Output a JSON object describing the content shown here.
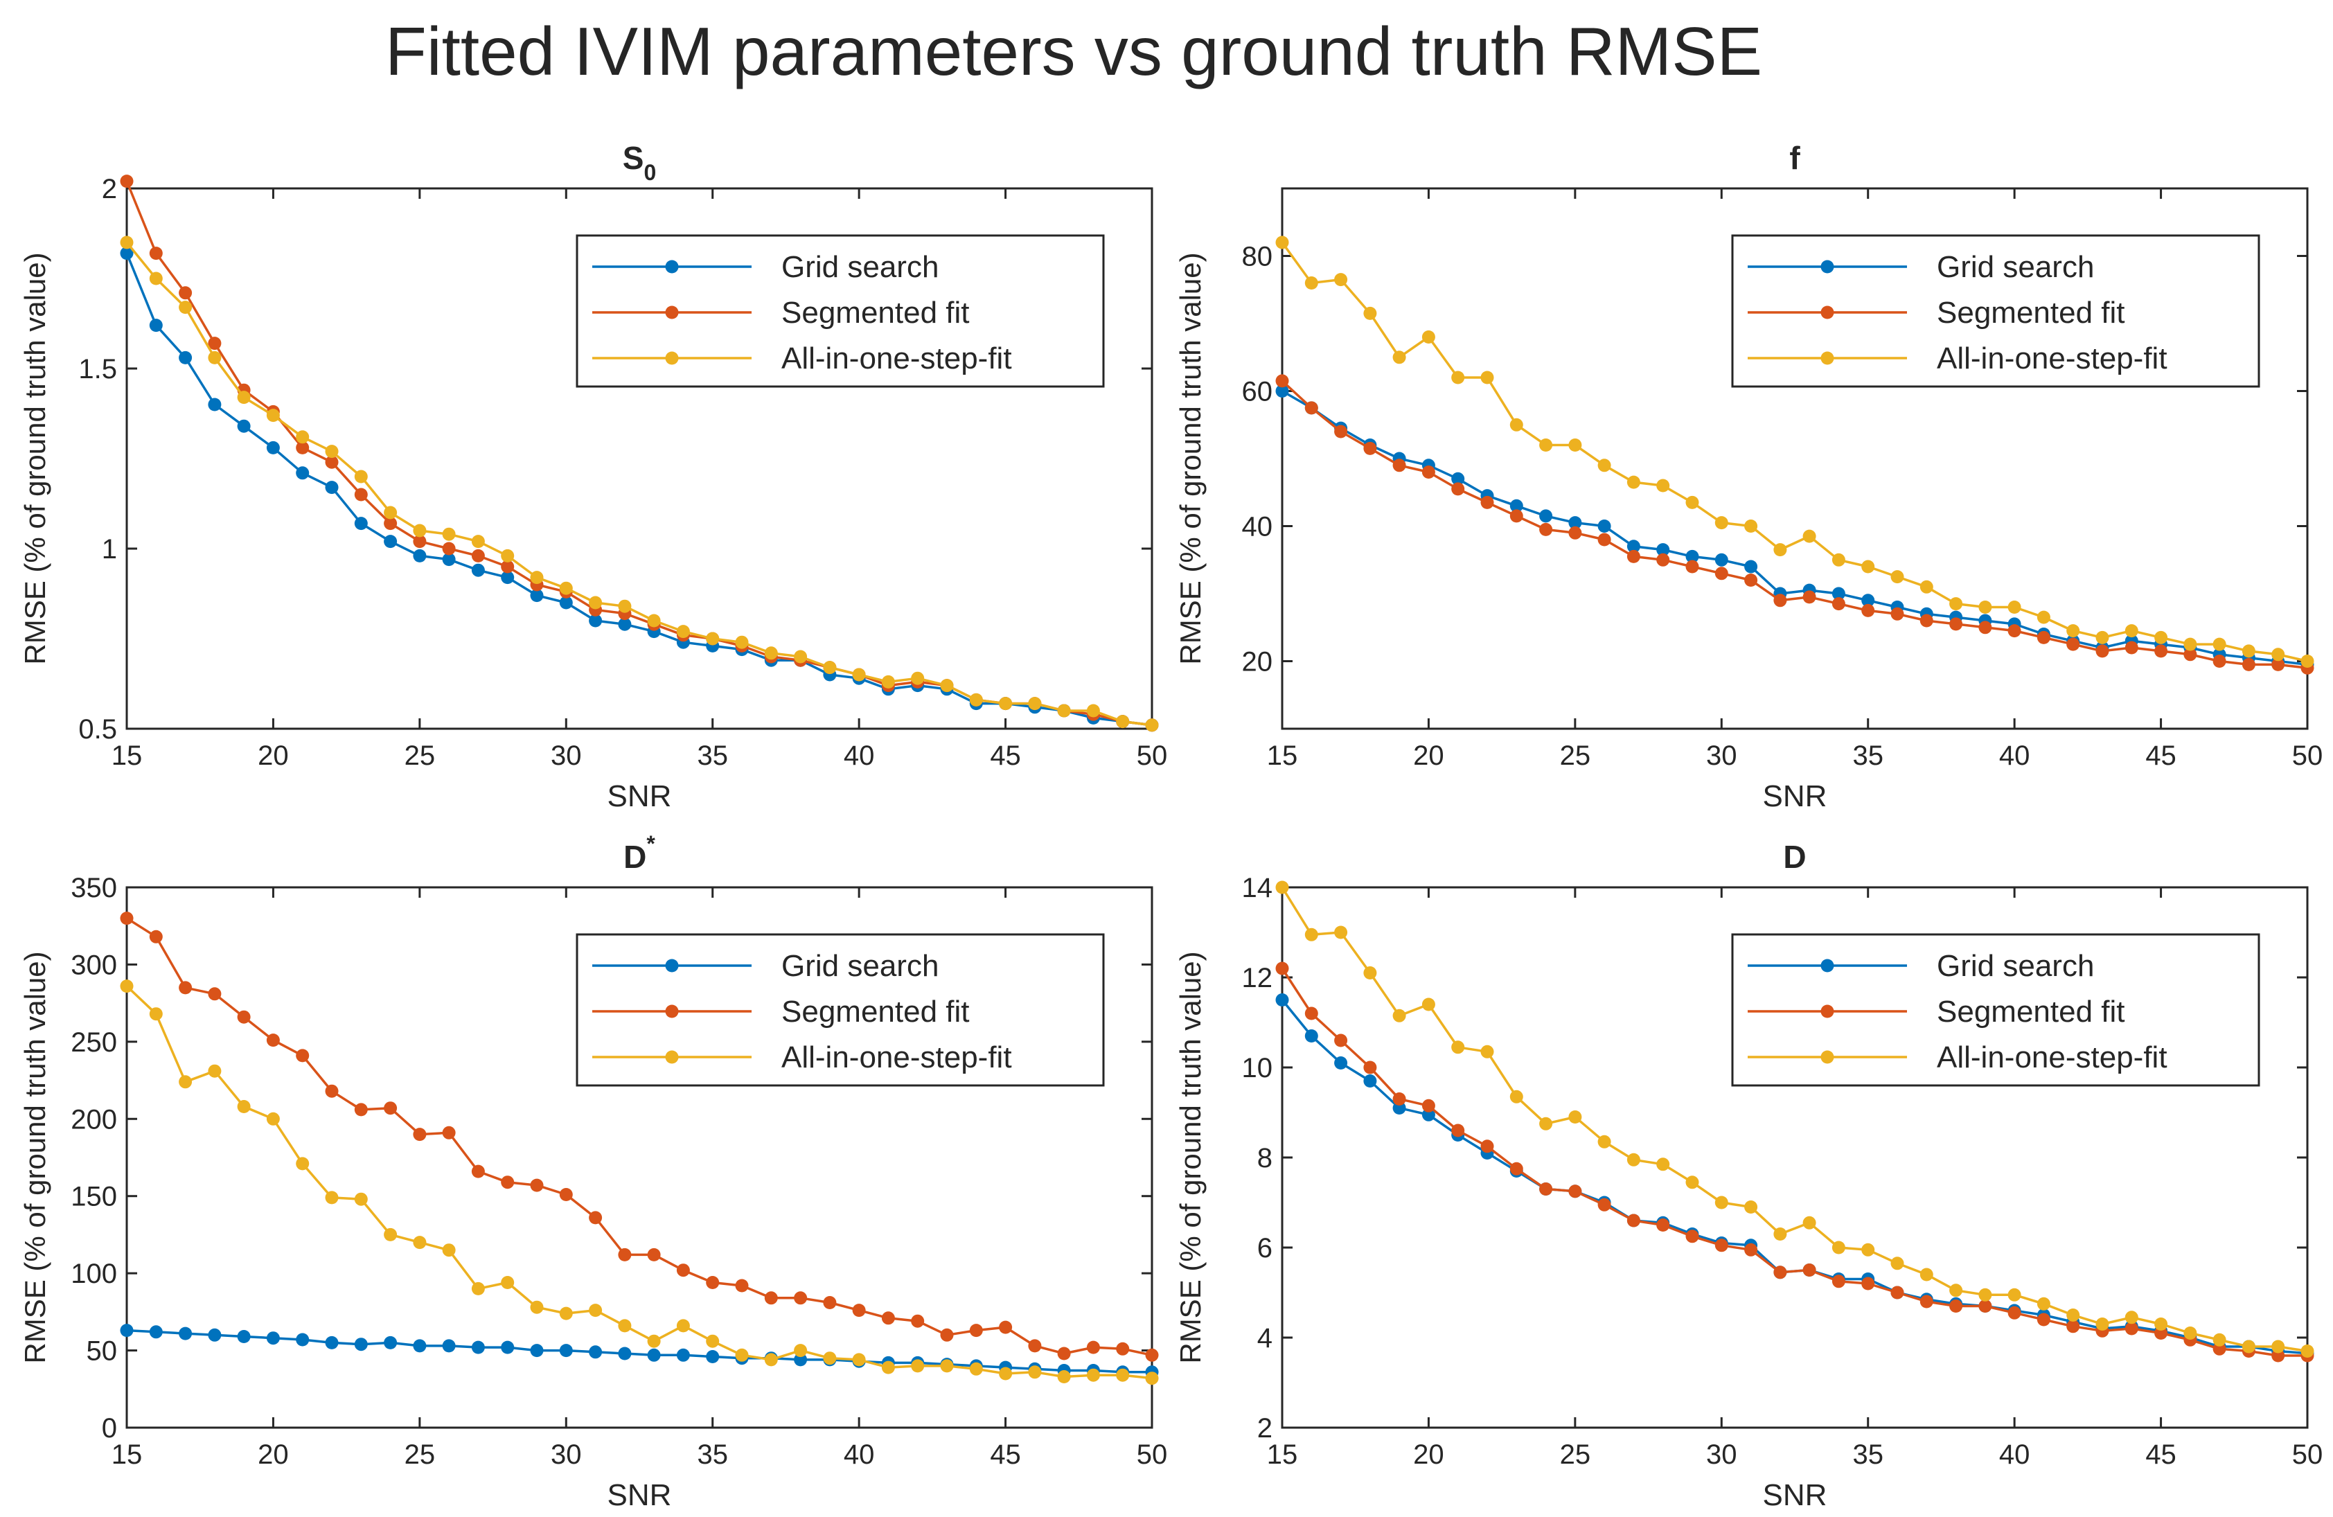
{
  "figure_title": "Fitted IVIM parameters vs ground truth RMSE",
  "colors": {
    "grid_search": "#0072BD",
    "segmented_fit": "#D95319",
    "all_in_one": "#EDB120",
    "axis": "#262626"
  },
  "chart_data": [
    {
      "type": "line",
      "title": "S",
      "title_subscript": "0",
      "title_superscript": "",
      "xlabel": "SNR",
      "ylabel": "RMSE (% of ground truth value)",
      "xlim": [
        15,
        50
      ],
      "ylim": [
        0.5,
        2
      ],
      "xticks": [
        15,
        20,
        25,
        30,
        35,
        40,
        45,
        50
      ],
      "yticks": [
        0.5,
        1,
        1.5,
        2
      ],
      "ytick_labels": [
        "0.5",
        "1",
        "1.5",
        "2"
      ],
      "legend": [
        "Grid search",
        "Segmented fit",
        "All-in-one-step-fit"
      ],
      "x": [
        15,
        16,
        17,
        18,
        19,
        20,
        21,
        22,
        23,
        24,
        25,
        26,
        27,
        28,
        29,
        30,
        31,
        32,
        33,
        34,
        35,
        36,
        37,
        38,
        39,
        40,
        41,
        42,
        43,
        44,
        45,
        46,
        47,
        48,
        49,
        50
      ],
      "series": [
        {
          "name": "Grid search",
          "values": [
            1.82,
            1.62,
            1.53,
            1.4,
            1.34,
            1.28,
            1.21,
            1.17,
            1.07,
            1.02,
            0.98,
            0.97,
            0.94,
            0.92,
            0.87,
            0.85,
            0.8,
            0.79,
            0.77,
            0.74,
            0.73,
            0.72,
            0.69,
            0.69,
            0.65,
            0.64,
            0.61,
            0.62,
            0.61,
            0.57,
            0.57,
            0.56,
            0.55,
            0.53,
            0.52,
            0.51
          ]
        },
        {
          "name": "Segmented fit",
          "values": [
            2.02,
            1.82,
            1.71,
            1.57,
            1.44,
            1.38,
            1.28,
            1.24,
            1.15,
            1.07,
            1.02,
            1.0,
            0.98,
            0.95,
            0.9,
            0.88,
            0.83,
            0.82,
            0.79,
            0.76,
            0.75,
            0.73,
            0.7,
            0.69,
            0.67,
            0.65,
            0.62,
            0.63,
            0.62,
            0.58,
            0.57,
            0.57,
            0.55,
            0.54,
            0.52,
            0.51
          ]
        },
        {
          "name": "All-in-one-step-fit",
          "values": [
            1.85,
            1.75,
            1.67,
            1.53,
            1.42,
            1.37,
            1.31,
            1.27,
            1.2,
            1.1,
            1.05,
            1.04,
            1.02,
            0.98,
            0.92,
            0.89,
            0.85,
            0.84,
            0.8,
            0.77,
            0.75,
            0.74,
            0.71,
            0.7,
            0.67,
            0.65,
            0.63,
            0.64,
            0.62,
            0.58,
            0.57,
            0.57,
            0.55,
            0.55,
            0.52,
            0.51
          ]
        }
      ]
    },
    {
      "type": "line",
      "title": "f",
      "title_subscript": "",
      "title_superscript": "",
      "xlabel": "SNR",
      "ylabel": "RMSE (% of ground truth value)",
      "xlim": [
        15,
        50
      ],
      "ylim": [
        10,
        90
      ],
      "xticks": [
        15,
        20,
        25,
        30,
        35,
        40,
        45,
        50
      ],
      "yticks": [
        20,
        40,
        60,
        80
      ],
      "ytick_labels": [
        "20",
        "40",
        "60",
        "80"
      ],
      "legend": [
        "Grid search",
        "Segmented fit",
        "All-in-one-step-fit"
      ],
      "x": [
        15,
        16,
        17,
        18,
        19,
        20,
        21,
        22,
        23,
        24,
        25,
        26,
        27,
        28,
        29,
        30,
        31,
        32,
        33,
        34,
        35,
        36,
        37,
        38,
        39,
        40,
        41,
        42,
        43,
        44,
        45,
        46,
        47,
        48,
        49,
        50
      ],
      "series": [
        {
          "name": "Grid search",
          "values": [
            60,
            57.5,
            54.5,
            52,
            50,
            49,
            47,
            44.5,
            43,
            41.5,
            40.5,
            40,
            37,
            36.5,
            35.5,
            35,
            34,
            30,
            30.5,
            30,
            29,
            28,
            27,
            26.5,
            26,
            25.5,
            24,
            23,
            22,
            23,
            22.5,
            22,
            21,
            20.5,
            20,
            19.5
          ]
        },
        {
          "name": "Segmented fit",
          "values": [
            61.5,
            57.5,
            54,
            51.5,
            49,
            48,
            45.5,
            43.5,
            41.5,
            39.5,
            39,
            38,
            35.5,
            35,
            34,
            33,
            32,
            29,
            29.5,
            28.5,
            27.5,
            27,
            26,
            25.5,
            25,
            24.5,
            23.5,
            22.5,
            21.5,
            22,
            21.5,
            21,
            20,
            19.5,
            19.5,
            19
          ]
        },
        {
          "name": "All-in-one-step-fit",
          "values": [
            82,
            76,
            76.5,
            71.5,
            65,
            68,
            62,
            62,
            55,
            52,
            52,
            49,
            46.5,
            46,
            43.5,
            40.5,
            40,
            36.5,
            38.5,
            35,
            34,
            32.5,
            31,
            28.5,
            28,
            28,
            26.5,
            24.5,
            23.5,
            24.5,
            23.5,
            22.5,
            22.5,
            21.5,
            21,
            20
          ]
        }
      ]
    },
    {
      "type": "line",
      "title": "D",
      "title_subscript": "",
      "title_superscript": "*",
      "xlabel": "SNR",
      "ylabel": "RMSE (% of ground truth value)",
      "xlim": [
        15,
        50
      ],
      "ylim": [
        0,
        350
      ],
      "xticks": [
        15,
        20,
        25,
        30,
        35,
        40,
        45,
        50
      ],
      "yticks": [
        0,
        50,
        100,
        150,
        200,
        250,
        300,
        350
      ],
      "ytick_labels": [
        "0",
        "50",
        "100",
        "150",
        "200",
        "250",
        "300",
        "350"
      ],
      "legend": [
        "Grid search",
        "Segmented fit",
        "All-in-one-step-fit"
      ],
      "x": [
        15,
        16,
        17,
        18,
        19,
        20,
        21,
        22,
        23,
        24,
        25,
        26,
        27,
        28,
        29,
        30,
        31,
        32,
        33,
        34,
        35,
        36,
        37,
        38,
        39,
        40,
        41,
        42,
        43,
        44,
        45,
        46,
        47,
        48,
        49,
        50
      ],
      "series": [
        {
          "name": "Grid search",
          "values": [
            63,
            62,
            61,
            60,
            59,
            58,
            57,
            55,
            54,
            55,
            53,
            53,
            52,
            52,
            50,
            50,
            49,
            48,
            47,
            47,
            46,
            45,
            45,
            44,
            44,
            43,
            42,
            42,
            41,
            40,
            39,
            38,
            37,
            37,
            36,
            36
          ]
        },
        {
          "name": "Segmented fit",
          "values": [
            330,
            318,
            285,
            281,
            266,
            251,
            241,
            218,
            206,
            207,
            190,
            191,
            166,
            159,
            157,
            151,
            136,
            112,
            112,
            102,
            94,
            92,
            84,
            84,
            81,
            76,
            71,
            69,
            60,
            63,
            65,
            53,
            48,
            52,
            51,
            47
          ]
        },
        {
          "name": "All-in-one-step-fit",
          "values": [
            286,
            268,
            224,
            231,
            208,
            200,
            171,
            149,
            148,
            125,
            120,
            115,
            90,
            94,
            78,
            74,
            76,
            66,
            56,
            66,
            56,
            47,
            44,
            50,
            45,
            44,
            39,
            40,
            40,
            38,
            35,
            36,
            33,
            34,
            34,
            32
          ]
        }
      ]
    },
    {
      "type": "line",
      "title": "D",
      "title_subscript": "",
      "title_superscript": "",
      "xlabel": "SNR",
      "ylabel": "RMSE (% of ground truth value)",
      "xlim": [
        15,
        50
      ],
      "ylim": [
        2,
        14
      ],
      "xticks": [
        15,
        20,
        25,
        30,
        35,
        40,
        45,
        50
      ],
      "yticks": [
        2,
        4,
        6,
        8,
        10,
        12,
        14
      ],
      "ytick_labels": [
        "2",
        "4",
        "6",
        "8",
        "10",
        "12",
        "14"
      ],
      "legend": [
        "Grid search",
        "Segmented fit",
        "All-in-one-step-fit"
      ],
      "x": [
        15,
        16,
        17,
        18,
        19,
        20,
        21,
        22,
        23,
        24,
        25,
        26,
        27,
        28,
        29,
        30,
        31,
        32,
        33,
        34,
        35,
        36,
        37,
        38,
        39,
        40,
        41,
        42,
        43,
        44,
        45,
        46,
        47,
        48,
        49,
        50
      ],
      "series": [
        {
          "name": "Grid search",
          "values": [
            11.5,
            10.7,
            10.1,
            9.7,
            9.1,
            8.95,
            8.5,
            8.1,
            7.7,
            7.3,
            7.25,
            7.0,
            6.6,
            6.55,
            6.3,
            6.1,
            6.05,
            5.45,
            5.5,
            5.3,
            5.3,
            5.0,
            4.85,
            4.75,
            4.7,
            4.6,
            4.5,
            4.35,
            4.2,
            4.25,
            4.15,
            4.0,
            3.8,
            3.8,
            3.7,
            3.65
          ]
        },
        {
          "name": "Segmented fit",
          "values": [
            12.2,
            11.2,
            10.6,
            10.0,
            9.3,
            9.15,
            8.6,
            8.25,
            7.75,
            7.3,
            7.25,
            6.95,
            6.6,
            6.5,
            6.25,
            6.05,
            5.95,
            5.45,
            5.5,
            5.25,
            5.2,
            5.0,
            4.8,
            4.7,
            4.7,
            4.55,
            4.4,
            4.25,
            4.15,
            4.2,
            4.1,
            3.95,
            3.75,
            3.7,
            3.6,
            3.6
          ]
        },
        {
          "name": "All-in-one-step-fit",
          "values": [
            14.0,
            12.95,
            13.0,
            12.1,
            11.15,
            11.4,
            10.45,
            10.35,
            9.35,
            8.75,
            8.9,
            8.35,
            7.95,
            7.85,
            7.45,
            7.0,
            6.9,
            6.3,
            6.55,
            6.0,
            5.95,
            5.65,
            5.4,
            5.05,
            4.95,
            4.95,
            4.75,
            4.5,
            4.3,
            4.45,
            4.3,
            4.1,
            3.95,
            3.8,
            3.8,
            3.7
          ]
        }
      ]
    }
  ]
}
